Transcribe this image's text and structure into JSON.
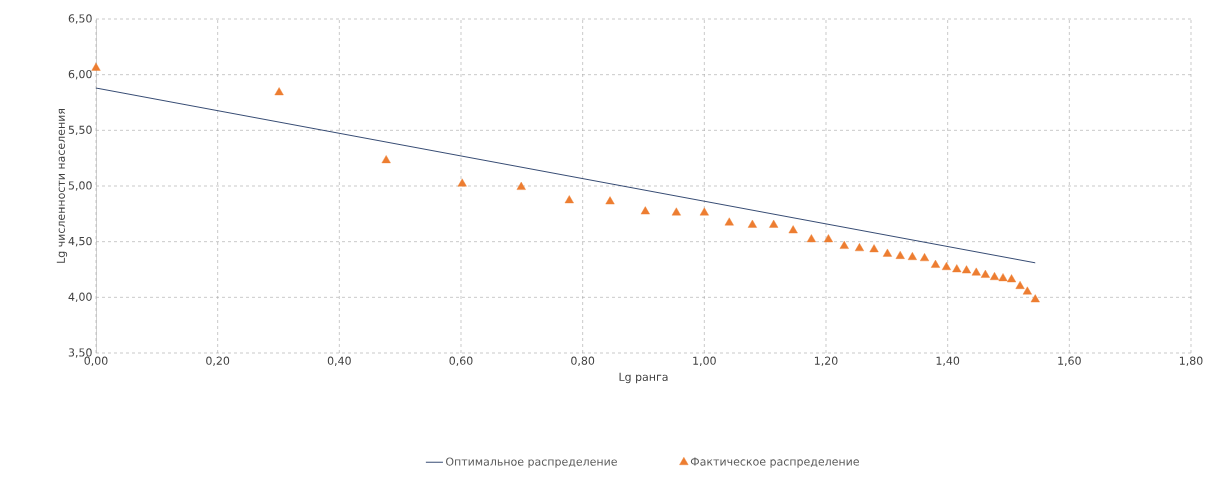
{
  "chart_data": {
    "type": "scatter",
    "xlabel": "Lg ранга",
    "ylabel": "Lg численности населения",
    "xlim": [
      0,
      1.8
    ],
    "ylim": [
      3.5,
      6.5
    ],
    "xticks": [
      {
        "value": 0,
        "label": "0,00"
      },
      {
        "value": 0.2,
        "label": "0,20"
      },
      {
        "value": 0.4,
        "label": "0,40"
      },
      {
        "value": 0.6,
        "label": "0,60"
      },
      {
        "value": 0.8,
        "label": "0,80"
      },
      {
        "value": 1,
        "label": "1,00"
      },
      {
        "value": 1.2,
        "label": "1,20"
      },
      {
        "value": 1.4,
        "label": "1,40"
      },
      {
        "value": 1.6,
        "label": "1,60"
      },
      {
        "value": 1.8,
        "label": "1,80"
      }
    ],
    "yticks": [
      {
        "value": 3.5,
        "label": "3,50"
      },
      {
        "value": 4,
        "label": "4,00"
      },
      {
        "value": 4.5,
        "label": "4,50"
      },
      {
        "value": 5,
        "label": "5,00"
      },
      {
        "value": 5.5,
        "label": "5,50"
      },
      {
        "value": 6,
        "label": "6,00"
      },
      {
        "value": 6.5,
        "label": "6,50"
      }
    ],
    "grid": true,
    "legend": "bottom",
    "series": [
      {
        "name": "Оптимальное распределение",
        "type": "line",
        "color": "#203864",
        "marker": "none",
        "line_style": "solid",
        "x": [
          0,
          1.544
        ],
        "values": [
          5.88,
          4.31
        ]
      },
      {
        "name": "Фактическое распределение",
        "type": "scatter",
        "color": "#ed7d31",
        "marker": "triangle",
        "x": [
          0,
          0.301,
          0.477,
          0.602,
          0.699,
          0.778,
          0.845,
          0.903,
          0.954,
          1.0,
          1.041,
          1.079,
          1.114,
          1.146,
          1.176,
          1.204,
          1.23,
          1.255,
          1.279,
          1.301,
          1.322,
          1.342,
          1.362,
          1.38,
          1.398,
          1.415,
          1.431,
          1.447,
          1.462,
          1.477,
          1.491,
          1.505,
          1.519,
          1.531,
          1.544
        ],
        "values": [
          6.06,
          5.84,
          5.23,
          5.02,
          4.99,
          4.87,
          4.86,
          4.77,
          4.76,
          4.76,
          4.67,
          4.65,
          4.65,
          4.6,
          4.52,
          4.52,
          4.46,
          4.44,
          4.43,
          4.39,
          4.37,
          4.36,
          4.35,
          4.29,
          4.27,
          4.25,
          4.24,
          4.22,
          4.2,
          4.18,
          4.17,
          4.16,
          4.1,
          4.05,
          3.98
        ]
      }
    ]
  }
}
